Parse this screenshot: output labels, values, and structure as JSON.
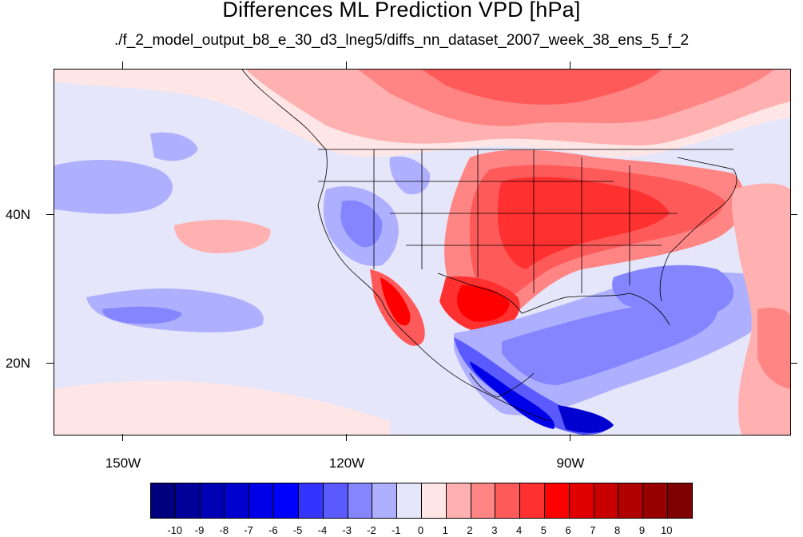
{
  "title": "Differences ML Prediction VPD [hPa]",
  "subtitle": "./f_2_model_output_b8_e_30_d3_lneg5/diffs_nn_dataset_2007_week_38_ens_5_f_2",
  "lon_labels": [
    "150W",
    "120W",
    "90W"
  ],
  "lat_labels": [
    "40N",
    "20N"
  ],
  "colorbar": {
    "colors": [
      "#00007f",
      "#000098",
      "#0000b4",
      "#0000cf",
      "#0000e8",
      "#0000ff",
      "#3434ff",
      "#5a5aff",
      "#8585ff",
      "#afafff",
      "#e6e6fa",
      "#ffe6e6",
      "#ffb0b0",
      "#ff8585",
      "#ff5a5a",
      "#ff3030",
      "#ff0000",
      "#e00000",
      "#c80000",
      "#b00000",
      "#980000",
      "#7f0000"
    ],
    "labels": [
      "-10",
      "-9",
      "-8",
      "-7",
      "-6",
      "-5",
      "-4",
      "-3",
      "-2",
      "-1",
      "0",
      "1",
      "2",
      "3",
      "4",
      "5",
      "6",
      "7",
      "8",
      "9",
      "10"
    ]
  }
}
